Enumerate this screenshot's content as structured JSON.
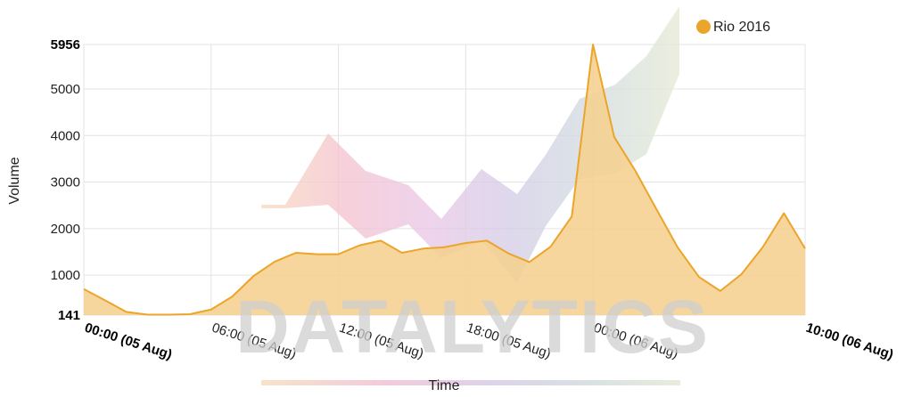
{
  "chart_data": {
    "type": "area",
    "xlabel": "Time",
    "ylabel": "Volume",
    "ylim": [
      141,
      5956
    ],
    "y_ticks": [
      141,
      1000,
      2000,
      3000,
      4000,
      5000,
      5956
    ],
    "x_tick_labels": [
      "00:00 (05 Aug)",
      "06:00 (05 Aug)",
      "12:00 (05 Aug)",
      "18:00 (05 Aug)",
      "00:00 (06 Aug)",
      "10:00 (06 Aug)"
    ],
    "x_tick_hours": [
      0,
      6,
      12,
      18,
      24,
      34
    ],
    "grid": true,
    "legend_position": "top-right",
    "watermark": "DATALYTICS",
    "colors": {
      "series": "#f5d08f",
      "stroke": "#eba52a",
      "legend_dot": "#eba52a"
    },
    "series": [
      {
        "name": "Rio 2016",
        "hours": [
          0,
          1,
          2,
          3,
          4,
          5,
          6,
          7,
          8,
          9,
          10,
          11,
          12,
          13,
          14,
          15,
          16,
          17,
          18,
          19,
          20,
          21,
          22,
          23,
          24,
          25,
          26,
          27,
          28,
          29,
          30,
          31,
          32,
          33,
          34
        ],
        "values": [
          700,
          460,
          210,
          150,
          150,
          160,
          260,
          540,
          980,
          1290,
          1480,
          1450,
          1450,
          1640,
          1740,
          1480,
          1570,
          1600,
          1690,
          1740,
          1470,
          1280,
          1610,
          2260,
          5956,
          3970,
          3240,
          2410,
          1590,
          960,
          660,
          1020,
          1600,
          2330,
          1570
        ]
      }
    ]
  }
}
